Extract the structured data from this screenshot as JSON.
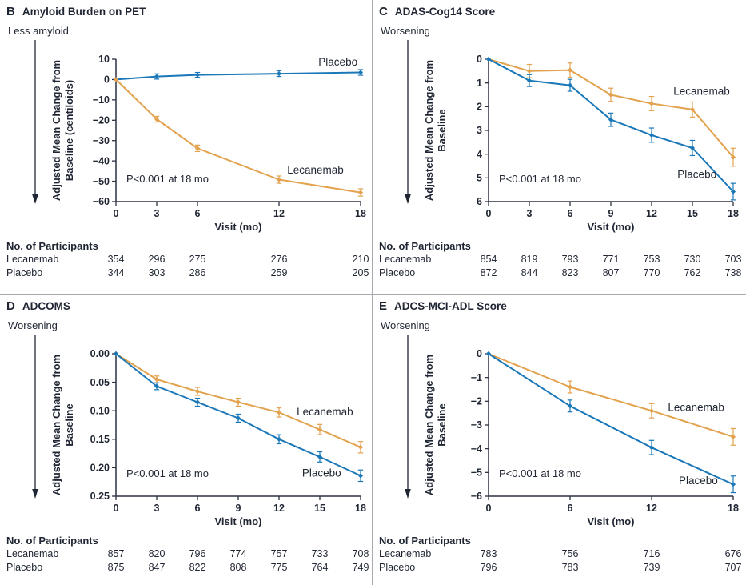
{
  "colors": {
    "lecanemab": "#e2a24e",
    "placebo": "#1a77b8",
    "text": "#1f2532",
    "axis": "#2b3040",
    "divider": "#a6a9ae"
  },
  "chart_data": [
    {
      "id": "B",
      "panel_letter": "B",
      "title": "Amyloid Burden on PET",
      "type": "line",
      "direction_label": "Less amyloid",
      "ylabel_lines": [
        "Adjusted Mean Change from",
        "Baseline (centiloids)"
      ],
      "xlabel": "Visit (mo)",
      "annotation": "P<0.001 at 18 mo",
      "x": [
        0,
        3,
        6,
        12,
        18
      ],
      "xlim": [
        0,
        18
      ],
      "xtick_values": [
        0,
        3,
        6,
        12,
        18
      ],
      "xtick_labels": [
        "0",
        "3",
        "6",
        "12",
        "18"
      ],
      "ylim_top_bottom": [
        10,
        -60
      ],
      "ytick_values": [
        10,
        0,
        -10,
        -20,
        -30,
        -40,
        -50,
        -60
      ],
      "ytick_labels": [
        "10",
        "0",
        "−10",
        "−20",
        "−30",
        "−40",
        "−50",
        "−60"
      ],
      "series": [
        {
          "name": "Placebo",
          "color": "placebo",
          "values": [
            0,
            1.5,
            2.3,
            2.9,
            3.5
          ],
          "err": [
            0,
            1.3,
            1.2,
            1.4,
            1.4
          ],
          "label_x": 14.9,
          "label_y": 8.6
        },
        {
          "name": "Lecanemab",
          "color": "lecanemab",
          "values": [
            0,
            -19.5,
            -33.8,
            -49.2,
            -55.5
          ],
          "err": [
            0,
            1.4,
            1.6,
            1.8,
            1.8
          ],
          "label_x": 12.6,
          "label_y": -44.5
        }
      ],
      "participants": {
        "header": "No. of Participants",
        "rows": [
          {
            "label": "Lecanemab",
            "values": [
              "354",
              "296",
              "275",
              "276",
              "210"
            ]
          },
          {
            "label": "Placebo",
            "values": [
              "344",
              "303",
              "286",
              "259",
              "205"
            ]
          }
        ]
      }
    },
    {
      "id": "C",
      "panel_letter": "C",
      "title": "ADAS-Cog14 Score",
      "type": "line",
      "direction_label": "Worsening",
      "ylabel_lines": [
        "Adjusted Mean Change from",
        "Baseline"
      ],
      "xlabel": "Visit (mo)",
      "annotation": "P<0.001 at 18 mo",
      "x": [
        0,
        3,
        6,
        9,
        12,
        15,
        18
      ],
      "xlim": [
        0,
        18
      ],
      "xtick_values": [
        0,
        3,
        6,
        9,
        12,
        15,
        18
      ],
      "xtick_labels": [
        "0",
        "3",
        "6",
        "9",
        "12",
        "15",
        "18"
      ],
      "ylim_top_bottom": [
        0,
        6
      ],
      "ytick_values": [
        0,
        1,
        2,
        3,
        4,
        5,
        6
      ],
      "ytick_labels": [
        "0",
        "1",
        "2",
        "3",
        "4",
        "5",
        "6"
      ],
      "series": [
        {
          "name": "Lecanemab",
          "color": "lecanemab",
          "values": [
            0,
            0.5,
            0.46,
            1.5,
            1.87,
            2.12,
            4.13
          ],
          "err": [
            0,
            0.28,
            0.3,
            0.28,
            0.3,
            0.32,
            0.38
          ],
          "label_x": 13.6,
          "label_y": 1.35
        },
        {
          "name": "Placebo",
          "color": "placebo",
          "values": [
            0,
            0.9,
            1.1,
            2.55,
            3.2,
            3.74,
            5.58
          ],
          "err": [
            0,
            0.25,
            0.25,
            0.28,
            0.3,
            0.32,
            0.35
          ],
          "label_x": 13.9,
          "label_y": 4.85
        }
      ],
      "participants": {
        "header": "No. of Participants",
        "rows": [
          {
            "label": "Lecanemab",
            "values": [
              "854",
              "819",
              "793",
              "771",
              "753",
              "730",
              "703"
            ]
          },
          {
            "label": "Placebo",
            "values": [
              "872",
              "844",
              "823",
              "807",
              "770",
              "762",
              "738"
            ]
          }
        ]
      }
    },
    {
      "id": "D",
      "panel_letter": "D",
      "title": "ADCOMS",
      "type": "line",
      "direction_label": "Worsening",
      "ylabel_lines": [
        "Adjusted Mean Change from",
        "Baseline"
      ],
      "xlabel": "Visit (mo)",
      "annotation": "P<0.001 at 18 mo",
      "x": [
        0,
        3,
        6,
        9,
        12,
        15,
        18
      ],
      "xlim": [
        0,
        18
      ],
      "xtick_values": [
        0,
        3,
        6,
        9,
        12,
        15,
        18
      ],
      "xtick_labels": [
        "0",
        "3",
        "6",
        "9",
        "12",
        "15",
        "18"
      ],
      "ylim_top_bottom": [
        0,
        0.25
      ],
      "ytick_values": [
        0,
        0.05,
        0.1,
        0.15,
        0.2,
        0.25
      ],
      "ytick_labels": [
        "0.00",
        "0.05",
        "0.10",
        "0.15",
        "0.20",
        "0.25"
      ],
      "series": [
        {
          "name": "Lecanemab",
          "color": "lecanemab",
          "values": [
            0,
            0.045,
            0.066,
            0.085,
            0.103,
            0.133,
            0.164
          ],
          "err": [
            0,
            0.006,
            0.007,
            0.007,
            0.008,
            0.009,
            0.01
          ],
          "label_x": 13.3,
          "label_y": 0.102
        },
        {
          "name": "Placebo",
          "color": "placebo",
          "values": [
            0,
            0.057,
            0.085,
            0.113,
            0.15,
            0.181,
            0.214
          ],
          "err": [
            0,
            0.006,
            0.007,
            0.007,
            0.008,
            0.009,
            0.01
          ],
          "label_x": 13.7,
          "label_y": 0.209
        }
      ],
      "participants": {
        "header": "No. of Participants",
        "rows": [
          {
            "label": "Lecanemab",
            "values": [
              "857",
              "820",
              "796",
              "774",
              "757",
              "733",
              "708"
            ]
          },
          {
            "label": "Placebo",
            "values": [
              "875",
              "847",
              "822",
              "808",
              "775",
              "764",
              "749"
            ]
          }
        ]
      }
    },
    {
      "id": "E",
      "panel_letter": "E",
      "title": "ADCS-MCI-ADL Score",
      "type": "line",
      "direction_label": "Worsening",
      "ylabel_lines": [
        "Adjusted Mean Change from",
        "Baseline"
      ],
      "xlabel": "Visit (mo)",
      "annotation": "P<0.001 at 18 mo",
      "x": [
        0,
        6,
        12,
        18
      ],
      "xlim": [
        0,
        18
      ],
      "xtick_values": [
        0,
        6,
        12,
        18
      ],
      "xtick_labels": [
        "0",
        "6",
        "12",
        "18"
      ],
      "ylim_top_bottom": [
        0,
        -6
      ],
      "ytick_values": [
        0,
        -1,
        -2,
        -3,
        -4,
        -5,
        -6
      ],
      "ytick_labels": [
        "0",
        "−1",
        "−2",
        "−3",
        "−4",
        "−5",
        "−6"
      ],
      "series": [
        {
          "name": "Lecanemab",
          "color": "lecanemab",
          "values": [
            0,
            -1.4,
            -2.4,
            -3.5
          ],
          "err": [
            0,
            0.25,
            0.3,
            0.35
          ],
          "label_x": 13.2,
          "label_y": -2.25
        },
        {
          "name": "Placebo",
          "color": "placebo",
          "values": [
            0,
            -2.2,
            -3.95,
            -5.5
          ],
          "err": [
            0,
            0.25,
            0.3,
            0.35
          ],
          "label_x": 14.0,
          "label_y": -5.35
        }
      ],
      "participants": {
        "header": "No. of Participants",
        "rows": [
          {
            "label": "Lecanemab",
            "values": [
              "783",
              "756",
              "716",
              "676"
            ]
          },
          {
            "label": "Placebo",
            "values": [
              "796",
              "783",
              "739",
              "707"
            ]
          }
        ]
      }
    }
  ]
}
